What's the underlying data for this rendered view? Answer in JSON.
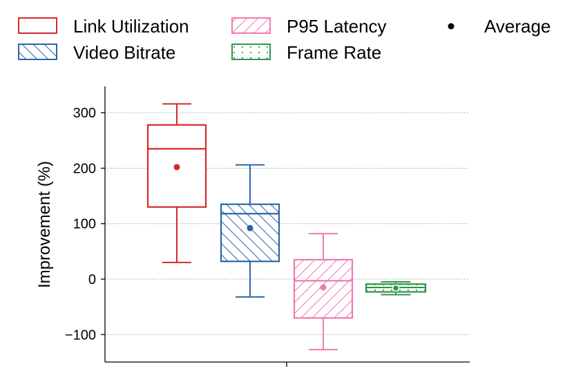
{
  "chart_data": {
    "type": "box",
    "title": "",
    "xlabel": "",
    "ylabel": "Improvement (%)",
    "ylim": [
      -150,
      350
    ],
    "yticks": [
      -100,
      0,
      100,
      200,
      300
    ],
    "ytick_labels": [
      "−100",
      "0",
      "100",
      "200",
      "300"
    ],
    "grid": "horizontal-dotted",
    "legend_placement": "top",
    "average_label": "Average",
    "series": [
      {
        "name": "Link Utilization",
        "color": "#d62728",
        "hatch": "none",
        "whisker_low": 30,
        "q1": 130,
        "median": 235,
        "q3": 278,
        "whisker_high": 316,
        "mean": 202
      },
      {
        "name": "Video Bitrate",
        "color": "#2a64a8",
        "hatch": "backslash",
        "whisker_low": -32,
        "q1": 32,
        "median": 118,
        "q3": 135,
        "whisker_high": 206,
        "mean": 92
      },
      {
        "name": "P95 Latency",
        "color": "#f07ab0",
        "hatch": "slash",
        "whisker_low": -127,
        "q1": -70,
        "median": -3,
        "q3": 35,
        "whisker_high": 82,
        "mean": -15
      },
      {
        "name": "Frame Rate",
        "color": "#2e9448",
        "hatch": "dots",
        "whisker_low": -28,
        "q1": -23,
        "median": -15,
        "q3": -9,
        "whisker_high": -5,
        "mean": -16
      }
    ]
  }
}
